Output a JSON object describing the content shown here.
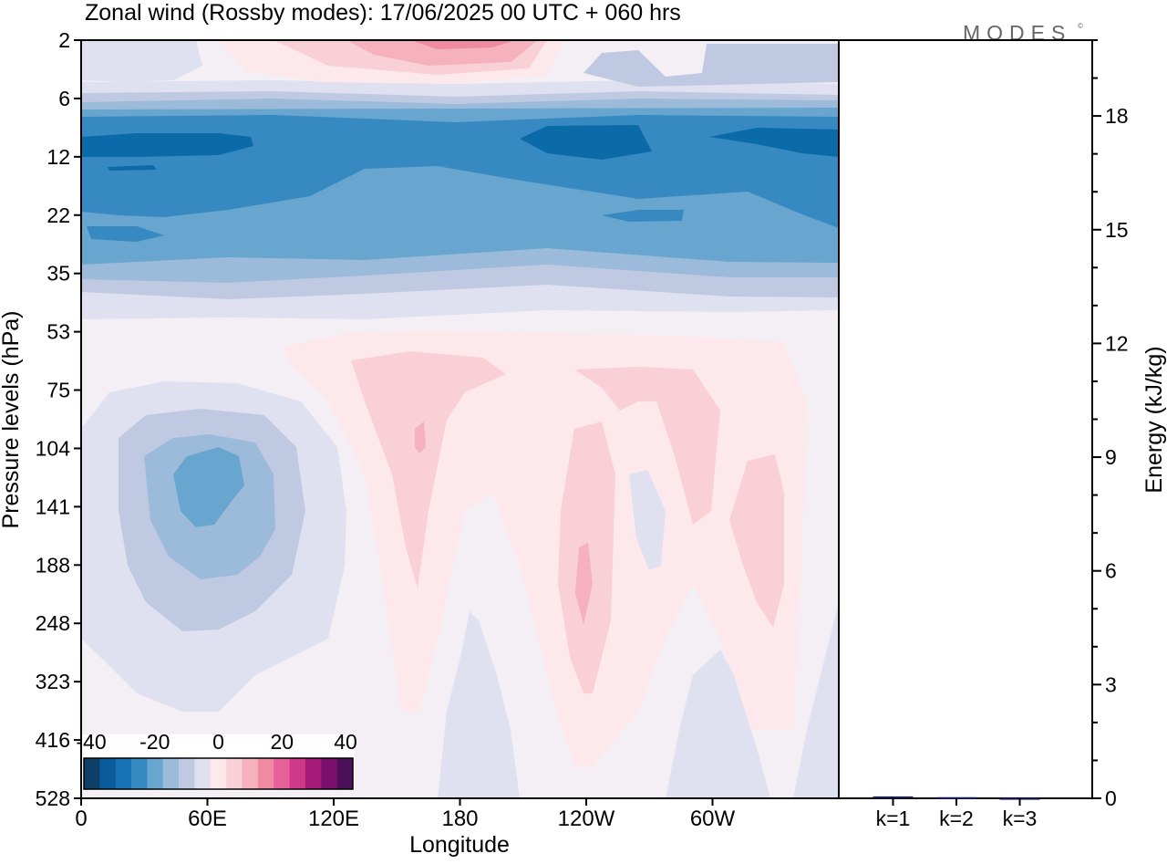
{
  "title": "Zonal wind (Rossby modes):  17/06/2025  00 UTC  + 060 hrs",
  "logo": {
    "text": "MODES",
    "mark": "©"
  },
  "colors": {
    "bg_contour": "#f4eef5",
    "neg": [
      "#0e3f66",
      "#0b5a99",
      "#1672b2",
      "#3789c2",
      "#68a5cf",
      "#9cbbdb",
      "#c0c9e2",
      "#e0e1f0"
    ],
    "pos": [
      "#fde9ec",
      "#f9d0d5",
      "#f5b1bd",
      "#f08aa3",
      "#e6609a",
      "#cf3789",
      "#a61a7a",
      "#7b0f6e",
      "#4c0f5a"
    ]
  },
  "chart_data": [
    {
      "type": "heatmap",
      "title": "Zonal wind (Rossby modes):  17/06/2025  00 UTC  + 060 hrs",
      "xlabel": "Longitude",
      "ylabel": "Pressure levels (hPa)",
      "x_ticks": [
        "0",
        "60E",
        "120E",
        "180",
        "120W",
        "60W"
      ],
      "x_tick_degrees": [
        0,
        60,
        120,
        180,
        240,
        300
      ],
      "x_range_degrees": [
        0,
        360
      ],
      "y_ticks": [
        "2",
        "6",
        "12",
        "22",
        "35",
        "53",
        "75",
        "104",
        "141",
        "188",
        "248",
        "323",
        "416",
        "528"
      ],
      "y_scale": "model levels (top 2 hPa, bottom 528 hPa)",
      "colorbar": {
        "ticks": [
          "-40",
          "-20",
          "0",
          "20",
          "40"
        ],
        "min": -40,
        "max": 40,
        "n_bins": 17
      },
      "features": [
        {
          "name": "upper easterly jet",
          "pressure_hPa": [
            6,
            35
          ],
          "value_min": -30
        },
        {
          "name": "upper westerly maximum",
          "lon": 190,
          "pressure_hPa": 2,
          "value_max": 15
        },
        {
          "name": "easterly core",
          "lon": 60,
          "pressure_hPa": 141,
          "value_min": -17
        },
        {
          "name": "westerly lobe",
          "lon": 160,
          "pressure_hPa": 104,
          "value_max": 12
        },
        {
          "name": "westerly lobe",
          "lon": 240,
          "pressure_hPa": 188,
          "value_max": 12
        },
        {
          "name": "westerly lobe",
          "lon": 330,
          "pressure_hPa": 188,
          "value_max": 7
        }
      ]
    },
    {
      "type": "bar",
      "ylabel": "Energy (kJ/kg)",
      "categories": [
        "k=1",
        "k=2",
        "k=3"
      ],
      "values": [
        0.05,
        0.03,
        0.01
      ],
      "ylim": [
        0,
        20
      ],
      "y_ticks": [
        "0",
        "3",
        "6",
        "9",
        "12",
        "15",
        "18"
      ],
      "y_tick_values": [
        0,
        3,
        6,
        9,
        12,
        15,
        18
      ],
      "bar_color": "#1a1a5e"
    }
  ]
}
